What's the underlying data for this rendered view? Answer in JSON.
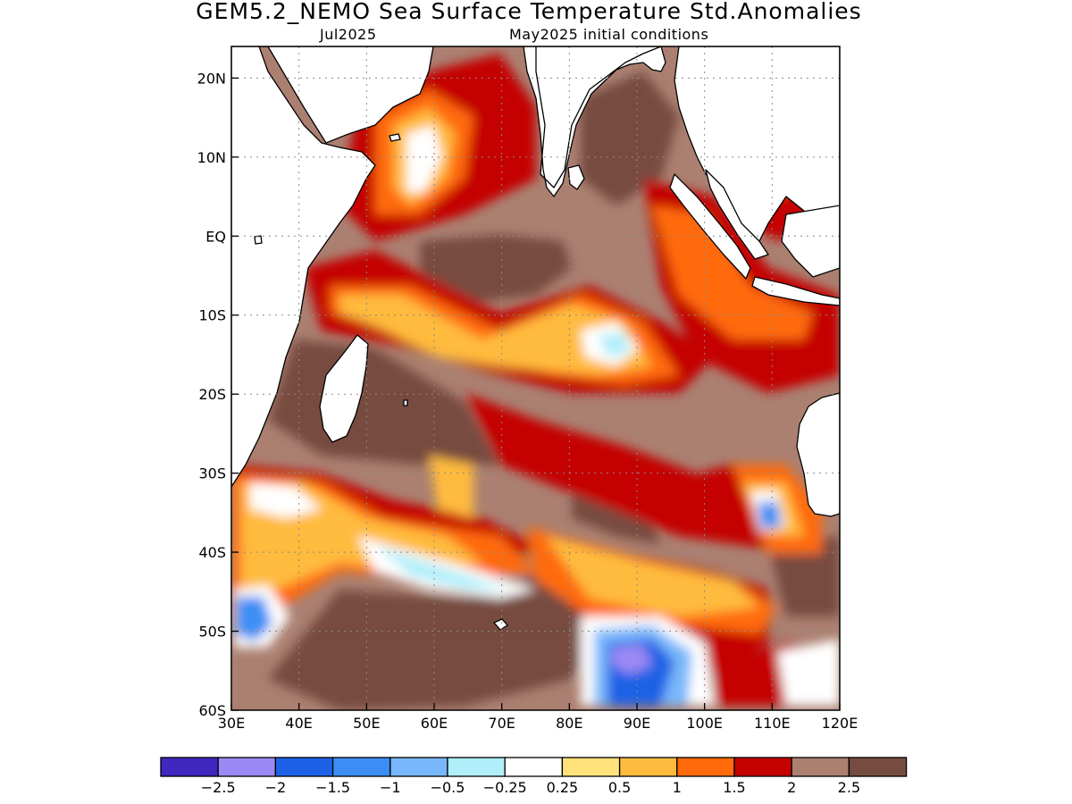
{
  "title": "GEM5.2_NEMO Sea Surface Temperature Std.Anomalies",
  "subtitle_left": "Jul2025",
  "subtitle_right": "May2025 initial conditions",
  "map": {
    "lon_range": [
      30,
      120
    ],
    "lat_range": [
      -60,
      24
    ],
    "lat_ticks": [
      {
        "value": 20,
        "label": "20N"
      },
      {
        "value": 10,
        "label": "10N"
      },
      {
        "value": 0,
        "label": "EQ"
      },
      {
        "value": -10,
        "label": "10S"
      },
      {
        "value": -20,
        "label": "20S"
      },
      {
        "value": -30,
        "label": "30S"
      },
      {
        "value": -40,
        "label": "40S"
      },
      {
        "value": -50,
        "label": "50S"
      },
      {
        "value": -60,
        "label": "60S"
      }
    ],
    "lon_ticks": [
      {
        "value": 30,
        "label": "30E"
      },
      {
        "value": 40,
        "label": "40E"
      },
      {
        "value": 50,
        "label": "50E"
      },
      {
        "value": 60,
        "label": "60E"
      },
      {
        "value": 70,
        "label": "70E"
      },
      {
        "value": 80,
        "label": "80E"
      },
      {
        "value": 90,
        "label": "90E"
      },
      {
        "value": 100,
        "label": "100E"
      },
      {
        "value": 110,
        "label": "110E"
      },
      {
        "value": 120,
        "label": "120E"
      }
    ],
    "grid": true
  },
  "colorbar": {
    "colors": [
      "#3f27bf",
      "#9b8af5",
      "#1d62e6",
      "#3c8ef5",
      "#78b7fb",
      "#b0eefa",
      "#ffffff",
      "#ffe27a",
      "#ffbb3d",
      "#ff6a0a",
      "#c40000",
      "#ab8071",
      "#774c40"
    ],
    "labels": [
      "−2.5",
      "−2",
      "−1.5",
      "−1",
      "−0.5",
      "−0.25",
      "0.25",
      "0.5",
      "1",
      "1.5",
      "2",
      "2.5"
    ]
  }
}
